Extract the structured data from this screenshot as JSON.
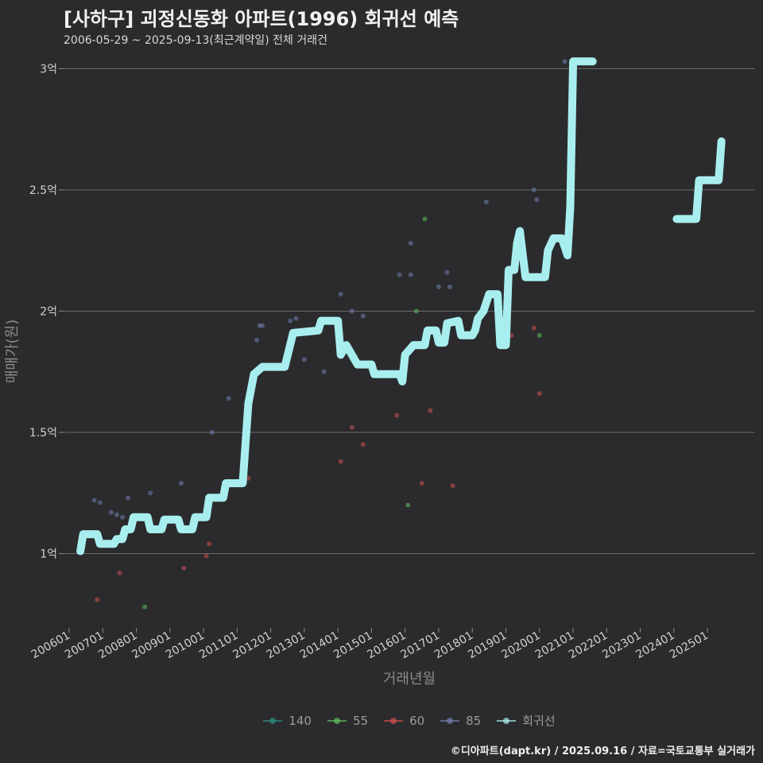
{
  "chart_data": {
    "type": "scatter",
    "title": "[사하구] 괴정신동화 아파트(1996) 회귀선 예측",
    "subtitle": "2006-05-29 ~ 2025-09-13(최근계약일) 전체 거래건",
    "xlabel": "거래년월",
    "ylabel": "매매가(원)",
    "credit": "©디아파트(dapt.kr) / 2025.09.16 / 자료=국토교통부 실거래가",
    "xlim": [
      "2005-11",
      "2026-06"
    ],
    "ylim": [
      0.7,
      3.08
    ],
    "y_ticks": [
      1,
      1.5,
      2,
      2.5,
      3
    ],
    "y_tick_labels": [
      "1억",
      "1.5억",
      "2억",
      "2.5억",
      "3억"
    ],
    "x_ticks": [
      "200601",
      "200701",
      "200801",
      "200901",
      "201001",
      "201101",
      "201201",
      "201301",
      "201401",
      "201501",
      "201601",
      "201701",
      "201801",
      "201901",
      "202001",
      "202101",
      "202201",
      "202301",
      "202401",
      "202501"
    ],
    "grid": "horizontal",
    "legend_position": "bottom",
    "colors": {
      "140": "#2f8f86",
      "55": "#5cbf5c",
      "60": "#d05050",
      "85": "#6f7fb0",
      "회귀선": "#a8eeee"
    },
    "legend": [
      "140",
      "55",
      "60",
      "85",
      "회귀선"
    ],
    "series": [
      {
        "name": "55",
        "points": [
          [
            "2008-04",
            0.78
          ],
          [
            "2016-02",
            1.2
          ],
          [
            "2016-05",
            2.0
          ],
          [
            "2016-08",
            2.38
          ],
          [
            "2020-01",
            1.9
          ]
        ]
      },
      {
        "name": "60",
        "points": [
          [
            "2006-11",
            0.81
          ],
          [
            "2007-07",
            0.92
          ],
          [
            "2009-06",
            0.94
          ],
          [
            "2010-02",
            0.99
          ],
          [
            "2010-03",
            1.04
          ],
          [
            "2011-05",
            1.31
          ],
          [
            "2014-02",
            1.38
          ],
          [
            "2014-06",
            1.52
          ],
          [
            "2014-10",
            1.45
          ],
          [
            "2015-10",
            1.57
          ],
          [
            "2016-07",
            1.29
          ],
          [
            "2016-10",
            1.59
          ],
          [
            "2017-06",
            1.28
          ],
          [
            "2019-03",
            1.9
          ],
          [
            "2019-11",
            1.93
          ],
          [
            "2020-01",
            1.66
          ]
        ]
      },
      {
        "name": "85",
        "points": [
          [
            "2006-10",
            1.22
          ],
          [
            "2006-12",
            1.21
          ],
          [
            "2007-04",
            1.17
          ],
          [
            "2007-06",
            1.16
          ],
          [
            "2007-08",
            1.15
          ],
          [
            "2007-10",
            1.23
          ],
          [
            "2008-06",
            1.25
          ],
          [
            "2009-05",
            1.29
          ],
          [
            "2010-04",
            1.5
          ],
          [
            "2010-10",
            1.64
          ],
          [
            "2011-08",
            1.88
          ],
          [
            "2011-09",
            1.94
          ],
          [
            "2011-10",
            1.94
          ],
          [
            "2012-08",
            1.96
          ],
          [
            "2012-10",
            1.97
          ],
          [
            "2013-01",
            1.8
          ],
          [
            "2013-08",
            1.75
          ],
          [
            "2014-02",
            2.07
          ],
          [
            "2014-06",
            2.0
          ],
          [
            "2014-10",
            1.98
          ],
          [
            "2015-11",
            2.15
          ],
          [
            "2016-03",
            2.28
          ],
          [
            "2016-03",
            2.15
          ],
          [
            "2017-01",
            2.1
          ],
          [
            "2017-04",
            2.16
          ],
          [
            "2017-05",
            2.1
          ],
          [
            "2018-06",
            2.45
          ],
          [
            "2019-07",
            2.25
          ],
          [
            "2019-11",
            2.5
          ],
          [
            "2019-12",
            2.46
          ],
          [
            "2020-10",
            3.03
          ]
        ]
      },
      {
        "name": "140",
        "points": []
      },
      {
        "name": "회귀선",
        "type": "line",
        "segments": [
          [
            [
              "2006-05",
              1.01
            ],
            [
              "2006-06",
              1.08
            ],
            [
              "2006-11",
              1.08
            ],
            [
              "2006-12",
              1.04
            ],
            [
              "2007-05",
              1.04
            ],
            [
              "2007-06",
              1.06
            ],
            [
              "2007-08",
              1.06
            ],
            [
              "2007-09",
              1.1
            ],
            [
              "2007-11",
              1.1
            ],
            [
              "2007-12",
              1.15
            ],
            [
              "2008-05",
              1.15
            ],
            [
              "2008-06",
              1.1
            ],
            [
              "2008-10",
              1.1
            ],
            [
              "2008-11",
              1.14
            ],
            [
              "2009-04",
              1.14
            ],
            [
              "2009-05",
              1.1
            ],
            [
              "2009-09",
              1.1
            ],
            [
              "2009-10",
              1.15
            ],
            [
              "2010-02",
              1.15
            ],
            [
              "2010-03",
              1.23
            ],
            [
              "2010-08",
              1.23
            ],
            [
              "2010-09",
              1.29
            ],
            [
              "2011-03",
              1.29
            ],
            [
              "2011-05",
              1.62
            ],
            [
              "2011-07",
              1.74
            ],
            [
              "2011-10",
              1.77
            ],
            [
              "2012-06",
              1.77
            ],
            [
              "2012-09",
              1.91
            ],
            [
              "2013-06",
              1.92
            ],
            [
              "2013-07",
              1.96
            ],
            [
              "2014-01",
              1.96
            ],
            [
              "2014-02",
              1.82
            ],
            [
              "2014-04",
              1.86
            ],
            [
              "2014-08",
              1.78
            ],
            [
              "2015-01",
              1.78
            ],
            [
              "2015-02",
              1.74
            ],
            [
              "2015-11",
              1.74
            ],
            [
              "2015-12",
              1.71
            ],
            [
              "2016-01",
              1.82
            ],
            [
              "2016-04",
              1.86
            ],
            [
              "2016-08",
              1.86
            ],
            [
              "2016-09",
              1.92
            ],
            [
              "2016-12",
              1.92
            ],
            [
              "2017-01",
              1.87
            ],
            [
              "2017-03",
              1.87
            ],
            [
              "2017-04",
              1.95
            ],
            [
              "2017-08",
              1.96
            ],
            [
              "2017-09",
              1.9
            ],
            [
              "2018-01",
              1.9
            ],
            [
              "2018-02",
              1.92
            ],
            [
              "2018-03",
              1.97
            ],
            [
              "2018-05",
              2.0
            ],
            [
              "2018-07",
              2.07
            ],
            [
              "2018-10",
              2.07
            ],
            [
              "2018-11",
              1.86
            ],
            [
              "2019-01",
              1.86
            ],
            [
              "2019-02",
              2.17
            ],
            [
              "2019-04",
              2.17
            ],
            [
              "2019-05",
              2.28
            ],
            [
              "2019-06",
              2.33
            ],
            [
              "2019-08",
              2.14
            ],
            [
              "2020-03",
              2.14
            ],
            [
              "2020-04",
              2.25
            ],
            [
              "2020-06",
              2.3
            ],
            [
              "2020-09",
              2.3
            ],
            [
              "2020-11",
              2.23
            ],
            [
              "2020-12",
              2.43
            ],
            [
              "2021-01",
              3.03
            ],
            [
              "2021-08",
              3.03
            ]
          ],
          [
            [
              "2024-02",
              2.38
            ],
            [
              "2024-09",
              2.38
            ],
            [
              "2024-10",
              2.54
            ],
            [
              "2025-05",
              2.54
            ],
            [
              "2025-06",
              2.7
            ]
          ]
        ]
      }
    ]
  }
}
